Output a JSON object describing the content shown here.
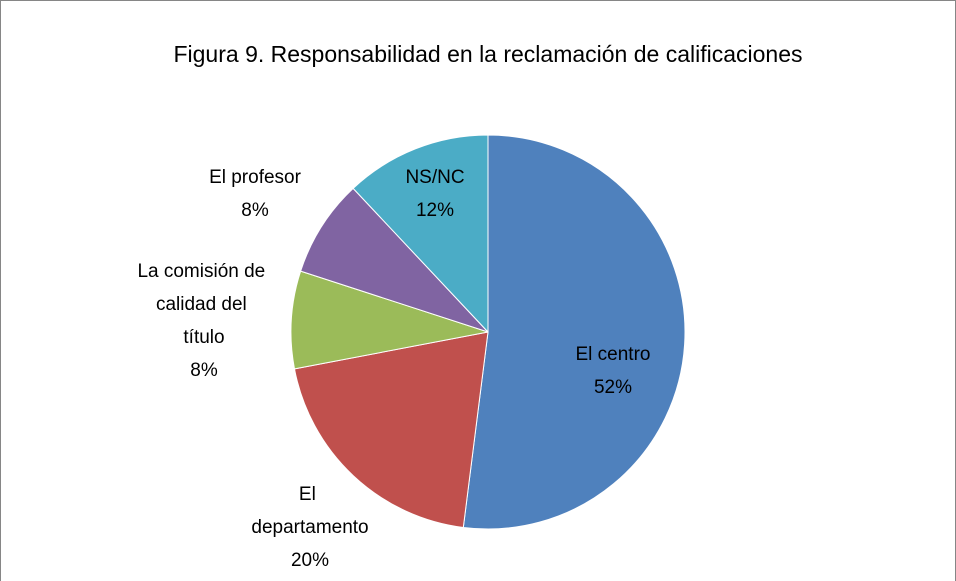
{
  "chart_data": {
    "type": "pie",
    "title": "Figura 9. Responsabilidad en la reclamación de calificaciones",
    "categories": [
      "El centro",
      "El departamento",
      "La comisión de calidad del título",
      "El profesor",
      "NS/NC"
    ],
    "values": [
      52,
      20,
      8,
      8,
      12
    ],
    "value_labels": [
      "52%",
      "20%",
      "8%",
      "8%",
      "12%"
    ],
    "colors": [
      "#4f81bd",
      "#c0504d",
      "#9bbb59",
      "#8064a2",
      "#4bacc6"
    ]
  }
}
